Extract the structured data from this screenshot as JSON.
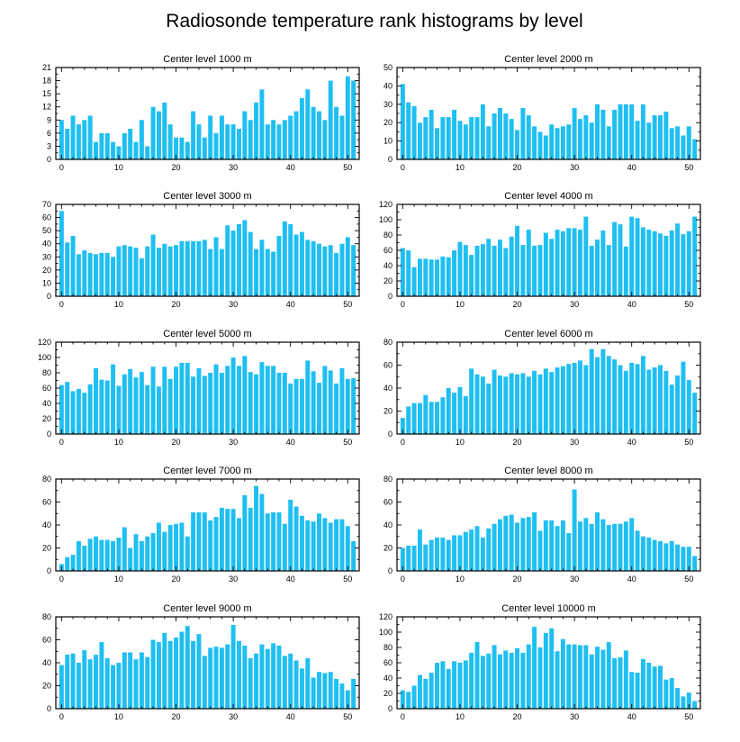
{
  "figure": {
    "title": "Radiosonde temperature rank histograms by level",
    "bar_color": "#1fbff2",
    "frame_color": "#000000"
  },
  "chart_data": [
    {
      "type": "bar",
      "title": "Center level 1000 m",
      "x": [
        0,
        1,
        2,
        3,
        4,
        5,
        6,
        7,
        8,
        9,
        10,
        11,
        12,
        13,
        14,
        15,
        16,
        17,
        18,
        19,
        20,
        21,
        22,
        23,
        24,
        25,
        26,
        27,
        28,
        29,
        30,
        31,
        32,
        33,
        34,
        35,
        36,
        37,
        38,
        39,
        40,
        41,
        42,
        43,
        44,
        45,
        46,
        47,
        48,
        49,
        50,
        51
      ],
      "values": [
        9,
        7,
        10,
        8,
        9,
        10,
        4,
        6,
        6,
        4,
        3,
        6,
        7,
        4,
        9,
        3,
        12,
        11,
        13,
        8,
        5,
        5,
        4,
        11,
        8,
        5,
        10,
        6,
        10,
        8,
        8,
        7,
        11,
        9,
        13,
        16,
        8,
        9,
        8,
        9,
        10,
        11,
        14,
        16,
        12,
        11,
        9,
        18,
        12,
        10,
        19,
        18
      ],
      "xlim": [
        -1,
        52
      ],
      "ylim": [
        0,
        21
      ],
      "xticks": [
        0,
        10,
        20,
        30,
        40,
        50
      ],
      "yticks": [
        0,
        3,
        6,
        9,
        12,
        15,
        18,
        21
      ]
    },
    {
      "type": "bar",
      "title": "Center level 2000 m",
      "x": [
        0,
        1,
        2,
        3,
        4,
        5,
        6,
        7,
        8,
        9,
        10,
        11,
        12,
        13,
        14,
        15,
        16,
        17,
        18,
        19,
        20,
        21,
        22,
        23,
        24,
        25,
        26,
        27,
        28,
        29,
        30,
        31,
        32,
        33,
        34,
        35,
        36,
        37,
        38,
        39,
        40,
        41,
        42,
        43,
        44,
        45,
        46,
        47,
        48,
        49,
        50,
        51
      ],
      "values": [
        41,
        31,
        29,
        20,
        23,
        27,
        17,
        23,
        23,
        27,
        21,
        19,
        23,
        23,
        30,
        18,
        25,
        28,
        25,
        22,
        16,
        28,
        24,
        18,
        15,
        13,
        19,
        17,
        18,
        19,
        28,
        22,
        24,
        20,
        30,
        27,
        18,
        27,
        30,
        30,
        30,
        21,
        30,
        20,
        24,
        24,
        26,
        17,
        18,
        13,
        18,
        11
      ],
      "xlim": [
        -1,
        52
      ],
      "ylim": [
        0,
        50
      ],
      "xticks": [
        0,
        10,
        20,
        30,
        40,
        50
      ],
      "yticks": [
        0,
        10,
        20,
        30,
        40,
        50
      ]
    },
    {
      "type": "bar",
      "title": "Center level 3000 m",
      "x": [
        0,
        1,
        2,
        3,
        4,
        5,
        6,
        7,
        8,
        9,
        10,
        11,
        12,
        13,
        14,
        15,
        16,
        17,
        18,
        19,
        20,
        21,
        22,
        23,
        24,
        25,
        26,
        27,
        28,
        29,
        30,
        31,
        32,
        33,
        34,
        35,
        36,
        37,
        38,
        39,
        40,
        41,
        42,
        43,
        44,
        45,
        46,
        47,
        48,
        49,
        50,
        51
      ],
      "values": [
        65,
        41,
        46,
        32,
        35,
        33,
        32,
        33,
        33,
        30,
        38,
        39,
        38,
        37,
        29,
        38,
        47,
        37,
        40,
        38,
        39,
        42,
        42,
        42,
        42,
        43,
        36,
        45,
        36,
        54,
        50,
        55,
        58,
        49,
        36,
        43,
        36,
        34,
        46,
        57,
        55,
        47,
        49,
        43,
        42,
        40,
        38,
        39,
        33,
        40,
        45,
        39
      ],
      "xlim": [
        -1,
        52
      ],
      "ylim": [
        0,
        70
      ],
      "xticks": [
        0,
        10,
        20,
        30,
        40,
        50
      ],
      "yticks": [
        0,
        10,
        20,
        30,
        40,
        50,
        60,
        70
      ]
    },
    {
      "type": "bar",
      "title": "Center level 4000 m",
      "x": [
        0,
        1,
        2,
        3,
        4,
        5,
        6,
        7,
        8,
        9,
        10,
        11,
        12,
        13,
        14,
        15,
        16,
        17,
        18,
        19,
        20,
        21,
        22,
        23,
        24,
        25,
        26,
        27,
        28,
        29,
        30,
        31,
        32,
        33,
        34,
        35,
        36,
        37,
        38,
        39,
        40,
        41,
        42,
        43,
        44,
        45,
        46,
        47,
        48,
        49,
        50,
        51
      ],
      "values": [
        63,
        60,
        38,
        49,
        49,
        48,
        48,
        52,
        51,
        60,
        71,
        67,
        54,
        66,
        68,
        75,
        66,
        74,
        63,
        78,
        92,
        67,
        87,
        66,
        67,
        83,
        75,
        87,
        85,
        89,
        89,
        87,
        104,
        66,
        74,
        86,
        67,
        97,
        94,
        65,
        104,
        102,
        90,
        87,
        85,
        82,
        79,
        86,
        95,
        81,
        85,
        104
      ],
      "xlim": [
        -1,
        52
      ],
      "ylim": [
        0,
        120
      ],
      "xticks": [
        0,
        10,
        20,
        30,
        40,
        50
      ],
      "yticks": [
        0,
        20,
        40,
        60,
        80,
        100,
        120
      ]
    },
    {
      "type": "bar",
      "title": "Center level 5000 m",
      "x": [
        0,
        1,
        2,
        3,
        4,
        5,
        6,
        7,
        8,
        9,
        10,
        11,
        12,
        13,
        14,
        15,
        16,
        17,
        18,
        19,
        20,
        21,
        22,
        23,
        24,
        25,
        26,
        27,
        28,
        29,
        30,
        31,
        32,
        33,
        34,
        35,
        36,
        37,
        38,
        39,
        40,
        41,
        42,
        43,
        44,
        45,
        46,
        47,
        48,
        49,
        50,
        51
      ],
      "values": [
        64,
        68,
        56,
        59,
        54,
        65,
        86,
        71,
        70,
        91,
        63,
        78,
        85,
        74,
        81,
        64,
        88,
        62,
        88,
        72,
        88,
        93,
        93,
        75,
        86,
        76,
        80,
        91,
        80,
        89,
        100,
        89,
        102,
        81,
        78,
        94,
        89,
        89,
        80,
        80,
        66,
        72,
        72,
        96,
        82,
        67,
        89,
        83,
        66,
        86,
        72,
        73
      ],
      "xlim": [
        -1,
        52
      ],
      "ylim": [
        0,
        120
      ],
      "xticks": [
        0,
        10,
        20,
        30,
        40,
        50
      ],
      "yticks": [
        0,
        20,
        40,
        60,
        80,
        100,
        120
      ]
    },
    {
      "type": "bar",
      "title": "Center level 6000 m",
      "x": [
        0,
        1,
        2,
        3,
        4,
        5,
        6,
        7,
        8,
        9,
        10,
        11,
        12,
        13,
        14,
        15,
        16,
        17,
        18,
        19,
        20,
        21,
        22,
        23,
        24,
        25,
        26,
        27,
        28,
        29,
        30,
        31,
        32,
        33,
        34,
        35,
        36,
        37,
        38,
        39,
        40,
        41,
        42,
        43,
        44,
        45,
        46,
        47,
        48,
        49,
        50,
        51
      ],
      "values": [
        14,
        24,
        27,
        27,
        34,
        28,
        28,
        32,
        40,
        36,
        41,
        33,
        57,
        52,
        50,
        44,
        56,
        51,
        50,
        53,
        52,
        53,
        50,
        55,
        52,
        57,
        54,
        58,
        59,
        61,
        62,
        64,
        60,
        74,
        67,
        74,
        68,
        65,
        60,
        55,
        62,
        61,
        68,
        56,
        58,
        60,
        55,
        43,
        51,
        63,
        47,
        36
      ],
      "xlim": [
        -1,
        52
      ],
      "ylim": [
        0,
        80
      ],
      "xticks": [
        0,
        10,
        20,
        30,
        40,
        50
      ],
      "yticks": [
        0,
        20,
        40,
        60,
        80
      ]
    },
    {
      "type": "bar",
      "title": "Center level 7000 m",
      "x": [
        0,
        1,
        2,
        3,
        4,
        5,
        6,
        7,
        8,
        9,
        10,
        11,
        12,
        13,
        14,
        15,
        16,
        17,
        18,
        19,
        20,
        21,
        22,
        23,
        24,
        25,
        26,
        27,
        28,
        29,
        30,
        31,
        32,
        33,
        34,
        35,
        36,
        37,
        38,
        39,
        40,
        41,
        42,
        43,
        44,
        45,
        46,
        47,
        48,
        49,
        50,
        51
      ],
      "values": [
        6,
        12,
        14,
        26,
        22,
        28,
        30,
        27,
        27,
        26,
        29,
        38,
        20,
        32,
        26,
        30,
        33,
        42,
        34,
        40,
        41,
        42,
        30,
        51,
        51,
        51,
        44,
        47,
        55,
        54,
        54,
        46,
        66,
        55,
        74,
        67,
        50,
        51,
        51,
        41,
        62,
        56,
        48,
        44,
        43,
        50,
        46,
        42,
        45,
        45,
        39,
        26
      ],
      "xlim": [
        -1,
        52
      ],
      "ylim": [
        0,
        80
      ],
      "xticks": [
        0,
        10,
        20,
        30,
        40,
        50
      ],
      "yticks": [
        0,
        20,
        40,
        60,
        80
      ]
    },
    {
      "type": "bar",
      "title": "Center level 8000 m",
      "x": [
        0,
        1,
        2,
        3,
        4,
        5,
        6,
        7,
        8,
        9,
        10,
        11,
        12,
        13,
        14,
        15,
        16,
        17,
        18,
        19,
        20,
        21,
        22,
        23,
        24,
        25,
        26,
        27,
        28,
        29,
        30,
        31,
        32,
        33,
        34,
        35,
        36,
        37,
        38,
        39,
        40,
        41,
        42,
        43,
        44,
        45,
        46,
        47,
        48,
        49,
        50,
        51
      ],
      "values": [
        20,
        22,
        22,
        36,
        23,
        27,
        29,
        29,
        27,
        31,
        31,
        34,
        36,
        39,
        29,
        37,
        41,
        45,
        48,
        49,
        42,
        46,
        47,
        51,
        35,
        44,
        44,
        39,
        44,
        33,
        71,
        43,
        46,
        41,
        51,
        45,
        40,
        41,
        41,
        43,
        46,
        35,
        30,
        29,
        27,
        26,
        24,
        26,
        23,
        21,
        21,
        13
      ],
      "xlim": [
        -1,
        52
      ],
      "ylim": [
        0,
        80
      ],
      "xticks": [
        0,
        10,
        20,
        30,
        40,
        50
      ],
      "yticks": [
        0,
        20,
        40,
        60,
        80
      ]
    },
    {
      "type": "bar",
      "title": "Center level 9000 m",
      "x": [
        0,
        1,
        2,
        3,
        4,
        5,
        6,
        7,
        8,
        9,
        10,
        11,
        12,
        13,
        14,
        15,
        16,
        17,
        18,
        19,
        20,
        21,
        22,
        23,
        24,
        25,
        26,
        27,
        28,
        29,
        30,
        31,
        32,
        33,
        34,
        35,
        36,
        37,
        38,
        39,
        40,
        41,
        42,
        43,
        44,
        45,
        46,
        47,
        48,
        49,
        50,
        51
      ],
      "values": [
        38,
        47,
        48,
        40,
        51,
        43,
        47,
        58,
        44,
        38,
        40,
        49,
        49,
        43,
        49,
        45,
        60,
        58,
        66,
        59,
        62,
        67,
        72,
        59,
        65,
        46,
        53,
        54,
        53,
        56,
        73,
        59,
        55,
        44,
        48,
        56,
        52,
        57,
        55,
        46,
        48,
        42,
        35,
        44,
        27,
        32,
        31,
        32,
        26,
        22,
        16,
        26
      ],
      "xlim": [
        -1,
        52
      ],
      "ylim": [
        0,
        80
      ],
      "xticks": [
        0,
        10,
        20,
        30,
        40,
        50
      ],
      "yticks": [
        0,
        20,
        40,
        60,
        80
      ]
    },
    {
      "type": "bar",
      "title": "Center level 10000 m",
      "x": [
        0,
        1,
        2,
        3,
        4,
        5,
        6,
        7,
        8,
        9,
        10,
        11,
        12,
        13,
        14,
        15,
        16,
        17,
        18,
        19,
        20,
        21,
        22,
        23,
        24,
        25,
        26,
        27,
        28,
        29,
        30,
        31,
        32,
        33,
        34,
        35,
        36,
        37,
        38,
        39,
        40,
        41,
        42,
        43,
        44,
        45,
        46,
        47,
        48,
        49,
        50,
        51
      ],
      "values": [
        24,
        22,
        30,
        44,
        39,
        47,
        60,
        62,
        52,
        62,
        60,
        63,
        73,
        87,
        69,
        72,
        83,
        71,
        76,
        73,
        79,
        73,
        84,
        107,
        80,
        99,
        105,
        75,
        91,
        84,
        84,
        83,
        83,
        71,
        81,
        77,
        87,
        66,
        67,
        76,
        48,
        47,
        65,
        60,
        55,
        56,
        38,
        40,
        27,
        16,
        21,
        10
      ],
      "xlim": [
        -1,
        52
      ],
      "ylim": [
        0,
        120
      ],
      "xticks": [
        0,
        10,
        20,
        30,
        40,
        50
      ],
      "yticks": [
        0,
        20,
        40,
        60,
        80,
        100,
        120
      ]
    }
  ]
}
